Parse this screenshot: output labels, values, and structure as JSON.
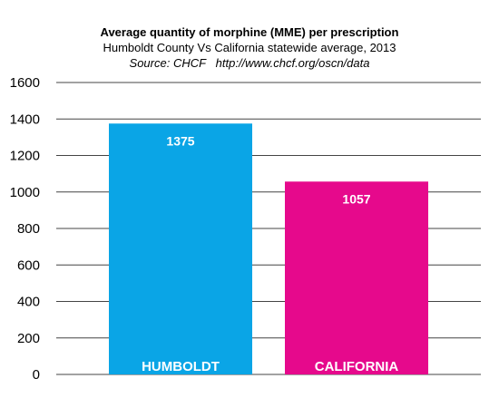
{
  "chart_data": {
    "type": "bar",
    "title": "Average quantity of morphine (MME) per prescription",
    "subtitle": "Humboldt County Vs California statewide average, 2013",
    "source": "Source: CHCF   http://www.chcf.org/oscn/data",
    "categories": [
      "HUMBOLDT",
      "CALIFORNIA"
    ],
    "values": [
      1375,
      1057
    ],
    "data_labels": [
      "1375",
      "1057"
    ],
    "bar_colors": [
      "#0aa5e6",
      "#e6098c"
    ],
    "ylim": [
      0,
      1600
    ],
    "yticks": [
      0,
      200,
      400,
      600,
      800,
      1000,
      1200,
      1400,
      1600
    ],
    "ytick_labels": [
      "0",
      "200",
      "400",
      "600",
      "800",
      "1000",
      "1200",
      "1400",
      "1600"
    ],
    "xlabel": "",
    "ylabel": "",
    "grid": true,
    "legend": "none"
  }
}
